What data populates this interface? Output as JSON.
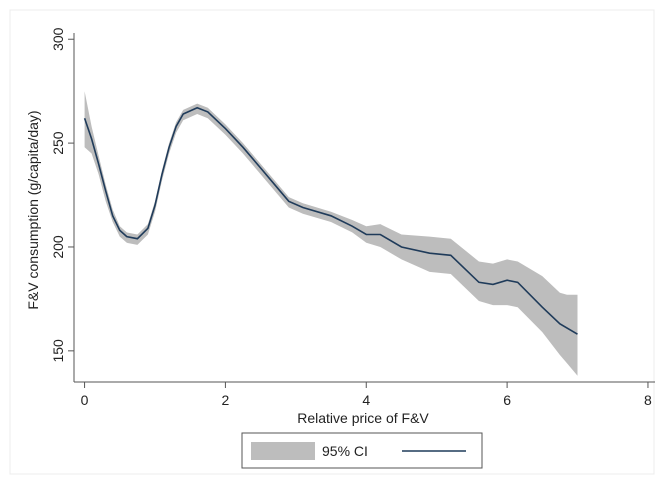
{
  "chart_data": {
    "type": "line",
    "title": "",
    "xlabel": "Relative price of F&V",
    "ylabel": "F&V consumption (g/capita/day)",
    "xlim": [
      -0.15,
      8.1
    ],
    "ylim": [
      135,
      303
    ],
    "xticks": [
      0,
      2,
      4,
      6,
      8
    ],
    "yticks": [
      150,
      200,
      250,
      300
    ],
    "grid": false,
    "legend_position": "bottom",
    "legend": [
      {
        "label": "95% CI",
        "kind": "band",
        "color": "#bdbdbd"
      },
      {
        "label": "",
        "kind": "line",
        "color": "#1f3b5a"
      }
    ],
    "colors": {
      "line": "#1f3b5a",
      "band": "#bdbdbd",
      "axis": "#555555"
    },
    "series": [
      {
        "values": [
          {
            "x": 0.0,
            "y": 262
          },
          {
            "x": 0.1,
            "y": 252
          },
          {
            "x": 0.2,
            "y": 240
          },
          {
            "x": 0.3,
            "y": 227
          },
          {
            "x": 0.4,
            "y": 215
          },
          {
            "x": 0.5,
            "y": 208
          },
          {
            "x": 0.6,
            "y": 205
          },
          {
            "x": 0.75,
            "y": 204
          },
          {
            "x": 0.9,
            "y": 209
          },
          {
            "x": 1.0,
            "y": 220
          },
          {
            "x": 1.1,
            "y": 235
          },
          {
            "x": 1.2,
            "y": 248
          },
          {
            "x": 1.3,
            "y": 258
          },
          {
            "x": 1.4,
            "y": 264
          },
          {
            "x": 1.6,
            "y": 267
          },
          {
            "x": 1.75,
            "y": 265
          },
          {
            "x": 2.0,
            "y": 257
          },
          {
            "x": 2.25,
            "y": 248
          },
          {
            "x": 2.5,
            "y": 238
          },
          {
            "x": 2.75,
            "y": 228
          },
          {
            "x": 2.9,
            "y": 222
          },
          {
            "x": 3.1,
            "y": 219
          },
          {
            "x": 3.5,
            "y": 215
          },
          {
            "x": 3.8,
            "y": 210
          },
          {
            "x": 4.0,
            "y": 206
          },
          {
            "x": 4.2,
            "y": 206
          },
          {
            "x": 4.5,
            "y": 200
          },
          {
            "x": 4.9,
            "y": 197
          },
          {
            "x": 5.2,
            "y": 196
          },
          {
            "x": 5.6,
            "y": 183
          },
          {
            "x": 5.8,
            "y": 182
          },
          {
            "x": 6.0,
            "y": 184
          },
          {
            "x": 6.15,
            "y": 183
          },
          {
            "x": 6.5,
            "y": 171
          },
          {
            "x": 6.75,
            "y": 163
          },
          {
            "x": 7.0,
            "y": 158
          }
        ]
      }
    ],
    "ci": {
      "label": "95% CI",
      "x": [
        0.0,
        0.1,
        0.2,
        0.3,
        0.4,
        0.5,
        0.6,
        0.75,
        0.9,
        1.0,
        1.1,
        1.2,
        1.3,
        1.4,
        1.6,
        1.75,
        2.0,
        2.25,
        2.5,
        2.75,
        2.9,
        3.1,
        3.5,
        3.8,
        4.0,
        4.2,
        4.5,
        4.9,
        5.2,
        5.6,
        5.8,
        6.0,
        6.15,
        6.5,
        6.75,
        6.85,
        7.0
      ],
      "upper": [
        275,
        258,
        244,
        230,
        218,
        210,
        207,
        206,
        211,
        222,
        237,
        250,
        260,
        266,
        269,
        267,
        259,
        250,
        240,
        230,
        224,
        221,
        217,
        213,
        210,
        211,
        206,
        205,
        204,
        193,
        192,
        194,
        193,
        186,
        178,
        177,
        177
      ],
      "lower": [
        248,
        245,
        235,
        222,
        212,
        205,
        202,
        201,
        206,
        217,
        232,
        245,
        255,
        261,
        264,
        262,
        254,
        245,
        235,
        225,
        219,
        216,
        212,
        207,
        202,
        200,
        194,
        188,
        187,
        174,
        172,
        172,
        171,
        159,
        148,
        144,
        138
      ]
    }
  }
}
